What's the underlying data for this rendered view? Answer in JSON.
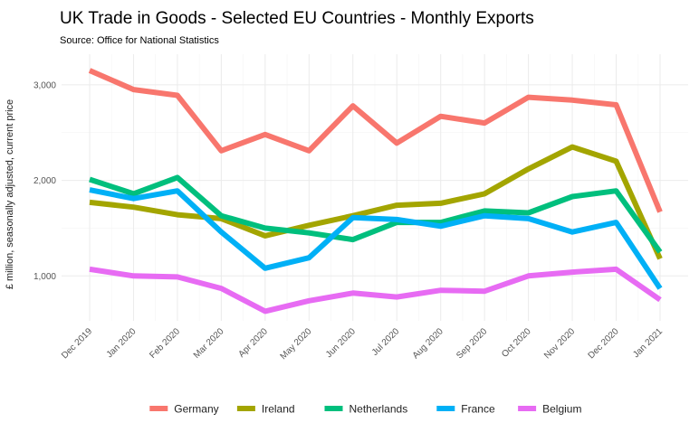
{
  "chart_data": {
    "type": "line",
    "title": "UK Trade in Goods - Selected EU Countries - Monthly Exports",
    "subtitle": "Source: Office for National Statistics",
    "xlabel": "",
    "ylabel": "£ million, seasonally adjusted, current price",
    "categories": [
      "Dec 2019",
      "Jan 2020",
      "Feb 2020",
      "Mar 2020",
      "Apr 2020",
      "May 2020",
      "Jun 2020",
      "Jul 2020",
      "Aug 2020",
      "Sep 2020",
      "Oct 2020",
      "Nov 2020",
      "Dec 2020",
      "Jan 2021"
    ],
    "ylim": [
      530,
      3320
    ],
    "yticks": [
      1000,
      2000,
      3000
    ],
    "ytick_labels": [
      "1,000",
      "2,000",
      "3,000"
    ],
    "grid": true,
    "legend_position": "bottom",
    "series": [
      {
        "name": "Germany",
        "color": "#F8766D",
        "values": [
          3150,
          2950,
          2890,
          2310,
          2480,
          2310,
          2780,
          2390,
          2670,
          2600,
          2870,
          2840,
          2790,
          1670
        ]
      },
      {
        "name": "Ireland",
        "color": "#A3A500",
        "values": [
          1770,
          1720,
          1640,
          1600,
          1420,
          1530,
          1630,
          1740,
          1760,
          1860,
          2120,
          2350,
          2200,
          1180
        ]
      },
      {
        "name": "Netherlands",
        "color": "#00BF7D",
        "values": [
          2010,
          1860,
          2030,
          1630,
          1500,
          1450,
          1380,
          1560,
          1560,
          1680,
          1660,
          1830,
          1890,
          1250
        ]
      },
      {
        "name": "France",
        "color": "#00B0F6",
        "values": [
          1900,
          1810,
          1890,
          1460,
          1080,
          1190,
          1610,
          1590,
          1520,
          1630,
          1600,
          1460,
          1560,
          870
        ]
      },
      {
        "name": "Belgium",
        "color": "#E76BF3",
        "values": [
          1070,
          1000,
          990,
          870,
          630,
          740,
          820,
          780,
          850,
          840,
          1000,
          1040,
          1070,
          750
        ]
      }
    ]
  }
}
